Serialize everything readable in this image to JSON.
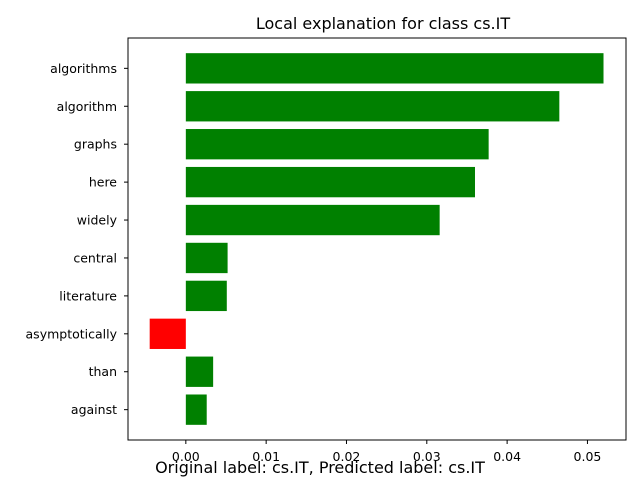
{
  "chart_data": {
    "type": "bar",
    "orientation": "horizontal",
    "title": "Local explanation for class cs.IT",
    "categories": [
      "algorithms",
      "algorithm",
      "graphs",
      "here",
      "widely",
      "central",
      "literature",
      "asymptotically",
      "than",
      "against"
    ],
    "values": [
      0.052,
      0.0465,
      0.0377,
      0.036,
      0.0316,
      0.0052,
      0.0051,
      -0.0045,
      0.0034,
      0.0026
    ],
    "xlim": [
      -0.0072,
      0.0548
    ],
    "xticks": [
      "0.00",
      "0.01",
      "0.02",
      "0.03",
      "0.04",
      "0.05"
    ],
    "xlabel": "",
    "ylabel": "",
    "grid": false,
    "colors": {
      "positive": "#008000",
      "negative": "#ff0000"
    }
  },
  "caption": "Original label: cs.IT, Predicted label: cs.IT"
}
